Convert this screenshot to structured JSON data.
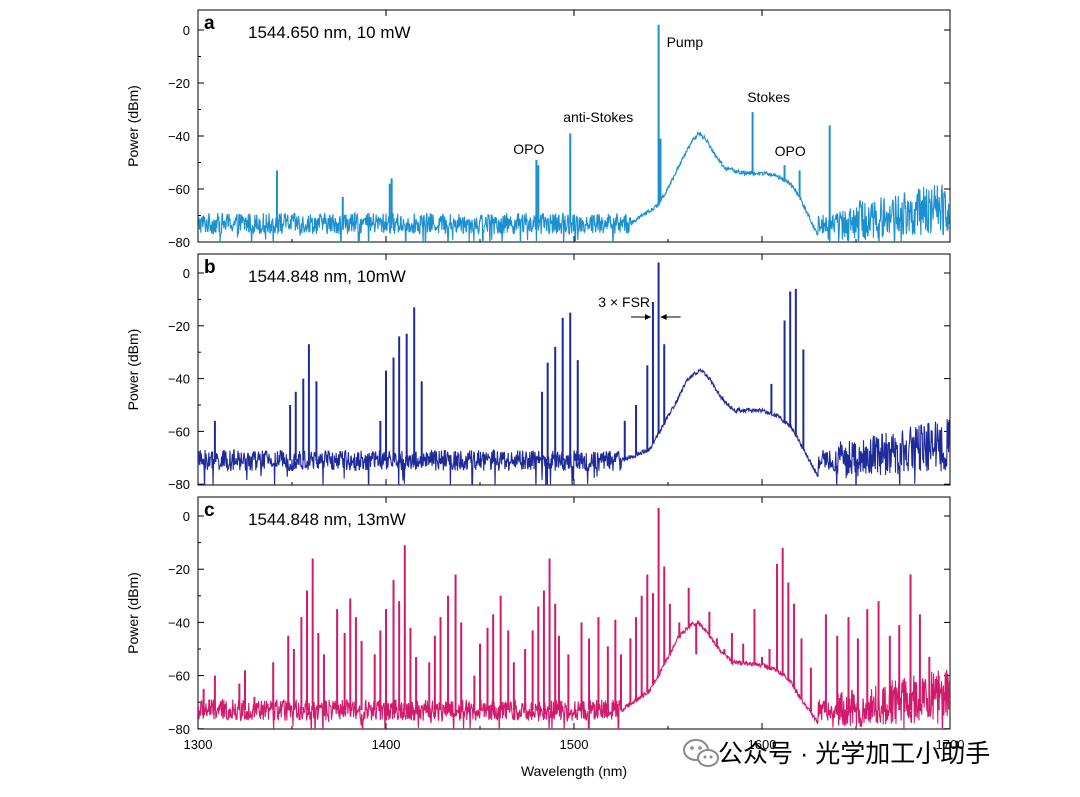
{
  "chart_data": [
    {
      "type": "line",
      "panel": "a",
      "title": "1544.650 nm, 10 mW",
      "xlabel": "",
      "ylabel": "Power (dBm)",
      "xlim": [
        1300,
        1700
      ],
      "ylim": [
        -80,
        5
      ],
      "yticks": [
        0,
        -20,
        -40,
        -60,
        -80
      ],
      "color": "#1a90d0",
      "noise_floor": -73,
      "envelope": [
        [
          1530,
          -73
        ],
        [
          1545,
          -66
        ],
        [
          1552,
          -57
        ],
        [
          1558,
          -48
        ],
        [
          1563,
          -42
        ],
        [
          1566,
          -39
        ],
        [
          1570,
          -41
        ],
        [
          1575,
          -47
        ],
        [
          1580,
          -52
        ],
        [
          1590,
          -54
        ],
        [
          1600,
          -54
        ],
        [
          1608,
          -55
        ],
        [
          1615,
          -58
        ],
        [
          1620,
          -63
        ],
        [
          1626,
          -72
        ],
        [
          1630,
          -78
        ]
      ],
      "peaks": [
        [
          1342,
          -53
        ],
        [
          1377,
          -63
        ],
        [
          1402,
          -58
        ],
        [
          1403,
          -56
        ],
        [
          1480,
          -49
        ],
        [
          1481,
          -51
        ],
        [
          1498,
          -39
        ],
        [
          1545,
          2
        ],
        [
          1546,
          -41
        ],
        [
          1595,
          -31
        ],
        [
          1612,
          -51
        ],
        [
          1620,
          -53
        ],
        [
          1636,
          -36
        ]
      ],
      "annotations": [
        {
          "text": "Pump",
          "x": 1545
        },
        {
          "text": "anti-Stokes",
          "x": 1498
        },
        {
          "text": "Stokes",
          "x": 1595
        },
        {
          "text": "OPO",
          "x": 1480
        },
        {
          "text": "OPO",
          "x": 1615
        }
      ]
    },
    {
      "type": "line",
      "panel": "b",
      "title": "1544.848 nm, 10mW",
      "xlabel": "",
      "ylabel": "Power (dBm)",
      "xlim": [
        1300,
        1700
      ],
      "ylim": [
        -80,
        5
      ],
      "yticks": [
        0,
        -20,
        -40,
        -60,
        -80
      ],
      "color": "#1f2a9a",
      "noise_floor": -71,
      "envelope": [
        [
          1525,
          -71
        ],
        [
          1540,
          -67
        ],
        [
          1548,
          -57
        ],
        [
          1555,
          -48
        ],
        [
          1560,
          -41
        ],
        [
          1564,
          -38
        ],
        [
          1568,
          -37
        ],
        [
          1572,
          -40
        ],
        [
          1578,
          -47
        ],
        [
          1585,
          -52
        ],
        [
          1600,
          -52
        ],
        [
          1608,
          -54
        ],
        [
          1615,
          -58
        ],
        [
          1620,
          -64
        ],
        [
          1626,
          -72
        ],
        [
          1630,
          -77
        ]
      ],
      "peaks": [
        [
          1309,
          -56
        ],
        [
          1349,
          -50
        ],
        [
          1352,
          -45
        ],
        [
          1356,
          -40
        ],
        [
          1359,
          -27
        ],
        [
          1363,
          -41
        ],
        [
          1397,
          -56
        ],
        [
          1400,
          -37
        ],
        [
          1404,
          -32
        ],
        [
          1407,
          -24
        ],
        [
          1411,
          -23
        ],
        [
          1415,
          -13
        ],
        [
          1419,
          -41
        ],
        [
          1483,
          -45
        ],
        [
          1486,
          -34
        ],
        [
          1490,
          -28
        ],
        [
          1494,
          -17
        ],
        [
          1498,
          -15
        ],
        [
          1502,
          -33
        ],
        [
          1527,
          -56
        ],
        [
          1533,
          -50
        ],
        [
          1539,
          -35
        ],
        [
          1542,
          -11
        ],
        [
          1545,
          4
        ],
        [
          1548,
          -27
        ],
        [
          1605,
          -42
        ],
        [
          1612,
          -18
        ],
        [
          1615,
          -7
        ],
        [
          1618,
          -6
        ],
        [
          1622,
          -29
        ]
      ],
      "annotations": [
        {
          "text": "3 × FSR",
          "x": 1532
        }
      ]
    },
    {
      "type": "line",
      "panel": "c",
      "title": "1544.848 nm, 13mW",
      "xlabel": "Wavelength (nm)",
      "ylabel": "Power (dBm)",
      "xlim": [
        1300,
        1700
      ],
      "ylim": [
        -80,
        5
      ],
      "xticks": [
        1300,
        1400,
        1500,
        1600,
        1700
      ],
      "yticks": [
        0,
        -20,
        -40,
        -60,
        -80
      ],
      "color": "#d11a6b",
      "noise_floor": -73,
      "envelope": [
        [
          1525,
          -73
        ],
        [
          1540,
          -66
        ],
        [
          1548,
          -56
        ],
        [
          1555,
          -46
        ],
        [
          1562,
          -41
        ],
        [
          1566,
          -40
        ],
        [
          1570,
          -43
        ],
        [
          1576,
          -49
        ],
        [
          1584,
          -55
        ],
        [
          1600,
          -56
        ],
        [
          1608,
          -58
        ],
        [
          1615,
          -62
        ],
        [
          1620,
          -68
        ],
        [
          1626,
          -74
        ],
        [
          1630,
          -78
        ]
      ],
      "peaks": [
        [
          1303,
          -65
        ],
        [
          1306,
          -69
        ],
        [
          1309,
          -60
        ],
        [
          1322,
          -63
        ],
        [
          1325,
          -58
        ],
        [
          1330,
          -68
        ],
        [
          1340,
          -55
        ],
        [
          1348,
          -45
        ],
        [
          1351,
          -50
        ],
        [
          1355,
          -38
        ],
        [
          1358,
          -28
        ],
        [
          1361,
          -16
        ],
        [
          1364,
          -44
        ],
        [
          1367,
          -52
        ],
        [
          1374,
          -35
        ],
        [
          1378,
          -44
        ],
        [
          1381,
          -31
        ],
        [
          1384,
          -38
        ],
        [
          1387,
          -47
        ],
        [
          1394,
          -52
        ],
        [
          1397,
          -43
        ],
        [
          1400,
          -35
        ],
        [
          1404,
          -24
        ],
        [
          1407,
          -32
        ],
        [
          1410,
          -11
        ],
        [
          1413,
          -42
        ],
        [
          1416,
          -53
        ],
        [
          1423,
          -55
        ],
        [
          1426,
          -45
        ],
        [
          1429,
          -38
        ],
        [
          1433,
          -30
        ],
        [
          1437,
          -22
        ],
        [
          1440,
          -40
        ],
        [
          1447,
          -60
        ],
        [
          1450,
          -48
        ],
        [
          1454,
          -42
        ],
        [
          1457,
          -37
        ],
        [
          1461,
          -30
        ],
        [
          1465,
          -43
        ],
        [
          1468,
          -55
        ],
        [
          1474,
          -50
        ],
        [
          1478,
          -43
        ],
        [
          1481,
          -34
        ],
        [
          1484,
          -28
        ],
        [
          1487,
          -16
        ],
        [
          1490,
          -33
        ],
        [
          1492,
          -45
        ],
        [
          1497,
          -52
        ],
        [
          1504,
          -40
        ],
        [
          1508,
          -46
        ],
        [
          1513,
          -38
        ],
        [
          1518,
          -49
        ],
        [
          1522,
          -39
        ],
        [
          1525,
          -52
        ],
        [
          1530,
          -46
        ],
        [
          1533,
          -38
        ],
        [
          1536,
          -30
        ],
        [
          1539,
          -22
        ],
        [
          1542,
          -29
        ],
        [
          1545,
          3
        ],
        [
          1548,
          -19
        ],
        [
          1551,
          -33
        ],
        [
          1556,
          -40
        ],
        [
          1561,
          -27
        ],
        [
          1565,
          -52
        ],
        [
          1572,
          -36
        ],
        [
          1576,
          -46
        ],
        [
          1580,
          -50
        ],
        [
          1584,
          -44
        ],
        [
          1590,
          -48
        ],
        [
          1596,
          -35
        ],
        [
          1600,
          -53
        ],
        [
          1604,
          -50
        ],
        [
          1608,
          -18
        ],
        [
          1611,
          -12
        ],
        [
          1614,
          -25
        ],
        [
          1617,
          -33
        ],
        [
          1621,
          -46
        ],
        [
          1626,
          -57
        ],
        [
          1634,
          -37
        ],
        [
          1640,
          -45
        ],
        [
          1646,
          -38
        ],
        [
          1651,
          -46
        ],
        [
          1656,
          -35
        ],
        [
          1662,
          -32
        ],
        [
          1668,
          -45
        ],
        [
          1673,
          -41
        ],
        [
          1679,
          -22
        ],
        [
          1684,
          -37
        ],
        [
          1689,
          -53
        ],
        [
          1694,
          -60
        ]
      ],
      "annotations": []
    }
  ],
  "watermark": {
    "text": "公众号 · 光学加工小助手",
    "icon": "wechat-icon",
    "color": "#8a8a8a"
  }
}
